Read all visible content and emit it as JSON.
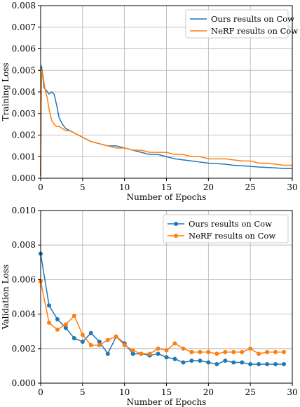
{
  "colors": {
    "ours": "#1f77b4",
    "nerf": "#ff7f0e",
    "grid": "#b0b0b0",
    "frame": "#000000"
  },
  "chart_data": [
    {
      "type": "line",
      "xlabel": "Number of Epochs",
      "ylabel": "Training Loss",
      "xlim": [
        0,
        30
      ],
      "ylim": [
        0,
        0.008
      ],
      "xticks": [
        0,
        5,
        10,
        15,
        20,
        25,
        30
      ],
      "xtick_labels": [
        "0",
        "5",
        "10",
        "15",
        "20",
        "25",
        "30"
      ],
      "yticks": [
        0,
        0.001,
        0.002,
        0.003,
        0.004,
        0.005,
        0.006,
        0.007,
        0.008
      ],
      "ytick_labels": [
        "0.000",
        "0.001",
        "0.002",
        "0.003",
        "0.004",
        "0.005",
        "0.006",
        "0.007",
        "0.008"
      ],
      "grid": true,
      "legend_position": "top-right",
      "markers": false,
      "series": [
        {
          "name": "Ours results on Cow",
          "color": "#1f77b4",
          "x": [
            0,
            0.1,
            0.2,
            0.4,
            0.6,
            0.8,
            1.0,
            1.3,
            1.6,
            1.9,
            2.2,
            2.6,
            3.0,
            3.5,
            4,
            5,
            6,
            7,
            8,
            9,
            10,
            11,
            12,
            13,
            14,
            15,
            16,
            17,
            18,
            19,
            20,
            21,
            22,
            23,
            24,
            25,
            26,
            27,
            28,
            29,
            30
          ],
          "values": [
            0.0001,
            0.0052,
            0.0049,
            0.0042,
            0.0041,
            0.004,
            0.0039,
            0.004,
            0.0039,
            0.0034,
            0.0028,
            0.0025,
            0.0023,
            0.0022,
            0.0021,
            0.0019,
            0.0017,
            0.0016,
            0.0015,
            0.0015,
            0.0014,
            0.0013,
            0.0012,
            0.0011,
            0.0011,
            0.001,
            0.0009,
            0.00085,
            0.0008,
            0.00075,
            0.0007,
            0.00068,
            0.00065,
            0.0006,
            0.00058,
            0.00055,
            0.00052,
            0.0005,
            0.00048,
            0.00045,
            0.00045
          ]
        },
        {
          "name": "NeRF results on Cow",
          "color": "#ff7f0e",
          "x": [
            0,
            0.1,
            0.2,
            0.4,
            0.6,
            0.8,
            1.0,
            1.3,
            1.6,
            1.9,
            2.2,
            2.6,
            3.0,
            3.5,
            4,
            5,
            6,
            7,
            8,
            9,
            10,
            11,
            12,
            13,
            14,
            15,
            16,
            17,
            18,
            19,
            20,
            21,
            22,
            23,
            24,
            25,
            26,
            27,
            28,
            29,
            30
          ],
          "values": [
            0.0001,
            0.005,
            0.005,
            0.0044,
            0.004,
            0.0037,
            0.0032,
            0.0027,
            0.0025,
            0.0024,
            0.0024,
            0.0023,
            0.0022,
            0.0022,
            0.0021,
            0.0019,
            0.0017,
            0.0016,
            0.0015,
            0.0014,
            0.0014,
            0.0013,
            0.0013,
            0.0012,
            0.0012,
            0.0012,
            0.0011,
            0.0011,
            0.001,
            0.001,
            0.0009,
            0.0009,
            0.0009,
            0.00085,
            0.0008,
            0.0008,
            0.0007,
            0.0007,
            0.00065,
            0.0006,
            0.0006
          ]
        }
      ]
    },
    {
      "type": "line",
      "xlabel": "Number of Epochs",
      "ylabel": "Validation Loss",
      "xlim": [
        0,
        30
      ],
      "ylim": [
        0,
        0.01
      ],
      "xticks": [
        0,
        5,
        10,
        15,
        20,
        25,
        30
      ],
      "xtick_labels": [
        "0",
        "5",
        "10",
        "15",
        "20",
        "25",
        "30"
      ],
      "yticks": [
        0,
        0.002,
        0.004,
        0.006,
        0.008,
        0.01
      ],
      "ytick_labels": [
        "0.000",
        "0.002",
        "0.004",
        "0.006",
        "0.008",
        "0.010"
      ],
      "grid": true,
      "legend_position": "top-right",
      "markers": true,
      "series": [
        {
          "name": "Ours results on Cow",
          "color": "#1f77b4",
          "x": [
            0,
            1,
            2,
            3,
            4,
            5,
            6,
            7,
            8,
            9,
            10,
            11,
            12,
            13,
            14,
            15,
            16,
            17,
            18,
            19,
            20,
            21,
            22,
            23,
            24,
            25,
            26,
            27,
            28,
            29
          ],
          "values": [
            0.0075,
            0.0045,
            0.0037,
            0.0032,
            0.0026,
            0.0024,
            0.0029,
            0.0024,
            0.0017,
            0.0027,
            0.0023,
            0.0017,
            0.0017,
            0.0016,
            0.0017,
            0.0015,
            0.0014,
            0.0012,
            0.0013,
            0.0013,
            0.0012,
            0.0011,
            0.0013,
            0.0012,
            0.0012,
            0.0011,
            0.0011,
            0.0011,
            0.0011,
            0.0011
          ]
        },
        {
          "name": "NeRF results on Cow",
          "color": "#ff7f0e",
          "x": [
            0,
            1,
            2,
            3,
            4,
            5,
            6,
            7,
            8,
            9,
            10,
            11,
            12,
            13,
            14,
            15,
            16,
            17,
            18,
            19,
            20,
            21,
            22,
            23,
            24,
            25,
            26,
            27,
            28,
            29
          ],
          "values": [
            0.0059,
            0.0035,
            0.0031,
            0.0034,
            0.0039,
            0.0028,
            0.0022,
            0.0022,
            0.0025,
            0.0027,
            0.0022,
            0.0019,
            0.0017,
            0.0017,
            0.002,
            0.0019,
            0.0023,
            0.002,
            0.0018,
            0.0018,
            0.0018,
            0.0017,
            0.0018,
            0.0018,
            0.0018,
            0.002,
            0.0017,
            0.0018,
            0.0018,
            0.0018
          ]
        }
      ]
    }
  ]
}
